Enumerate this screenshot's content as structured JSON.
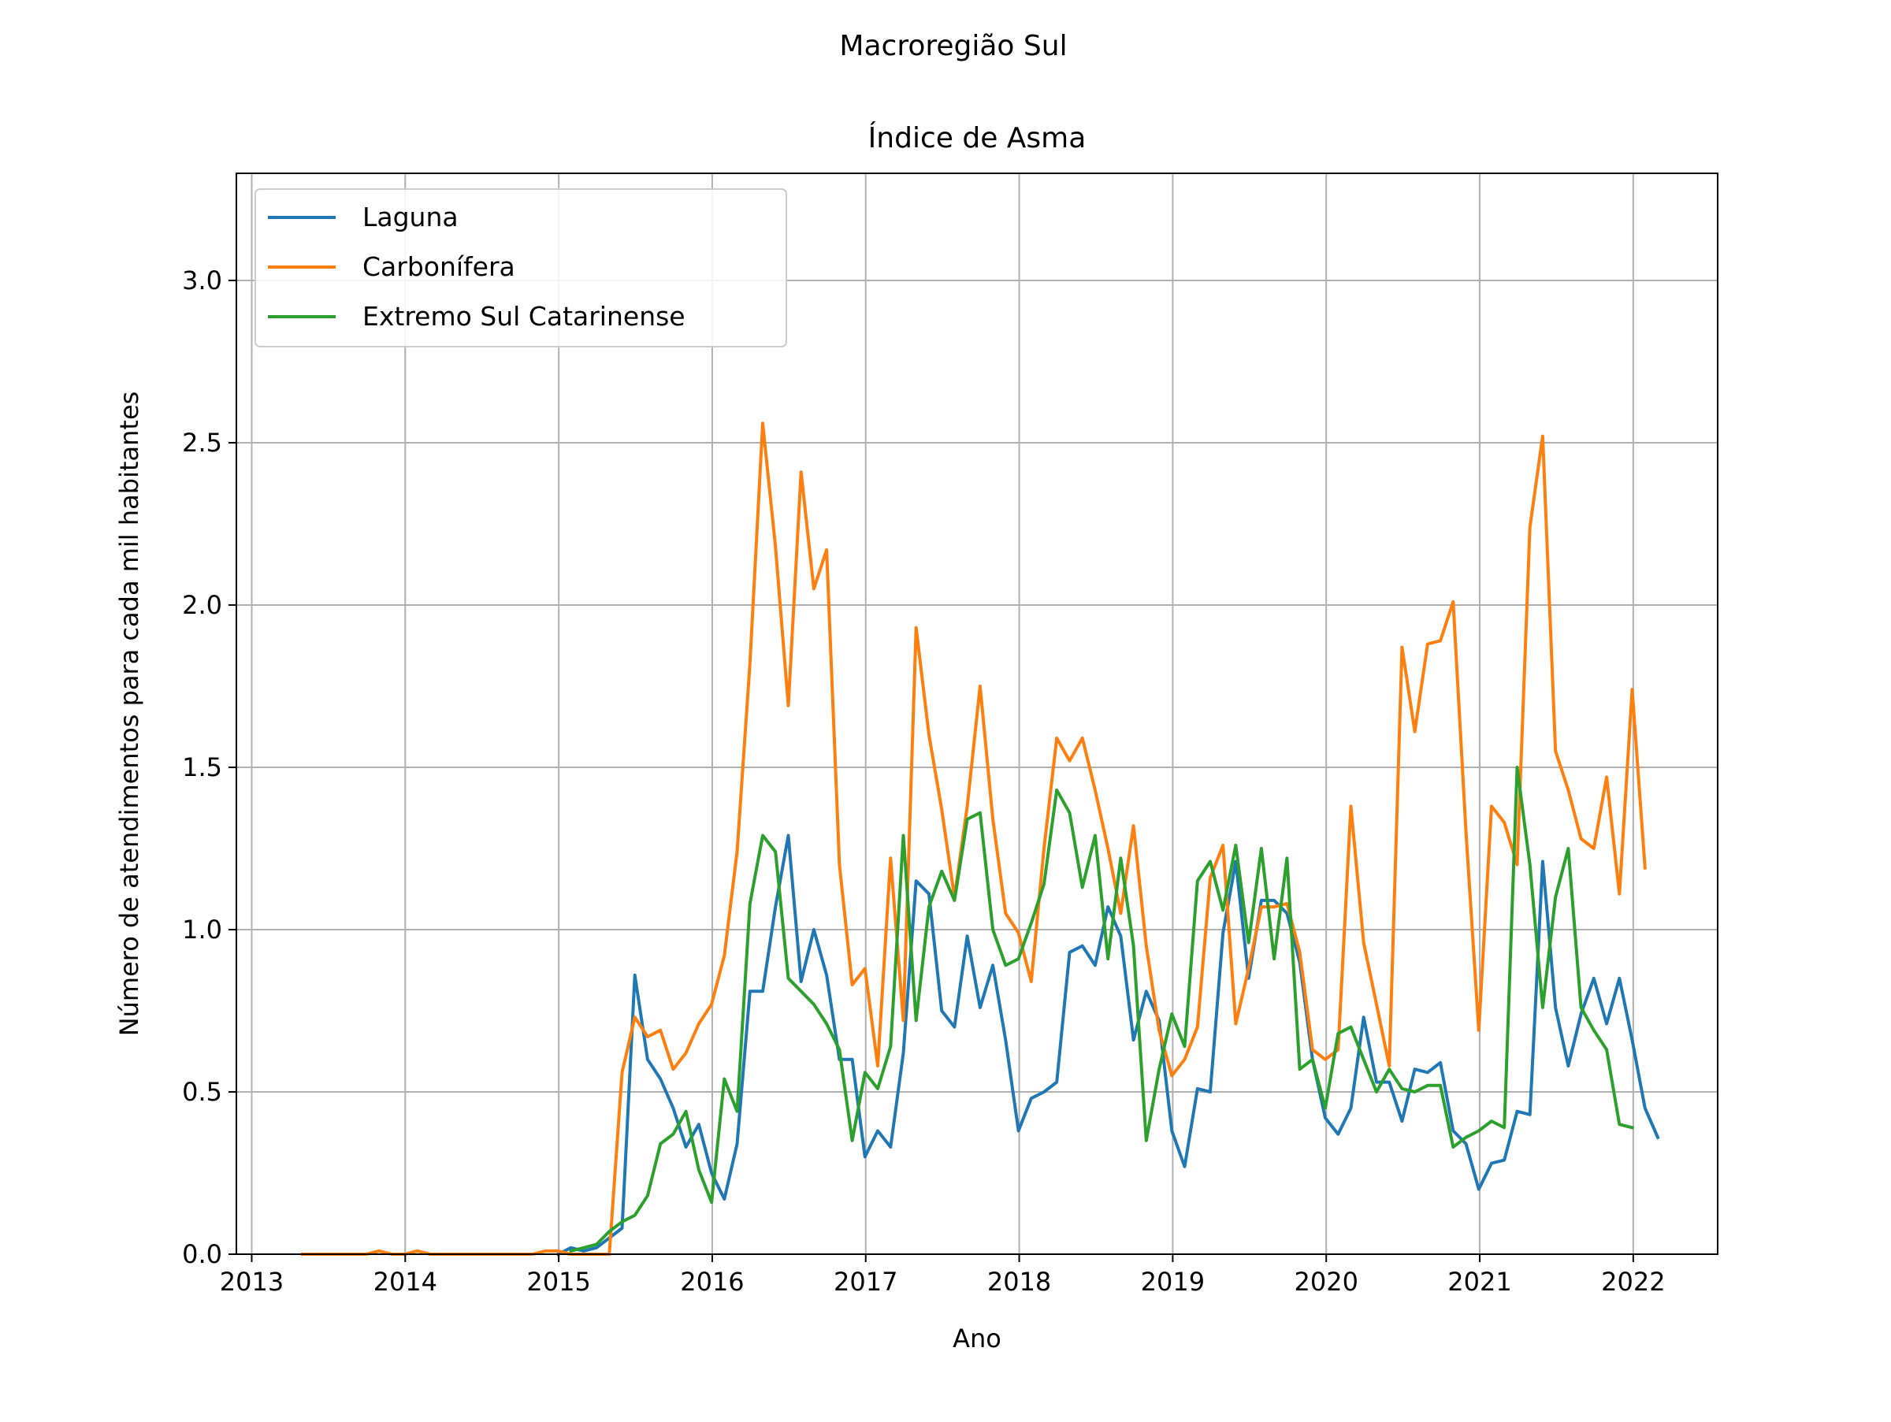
{
  "suptitle": "Macroregião Sul",
  "chart_data": {
    "type": "line",
    "title": "Índice de Asma",
    "xlabel": "Ano",
    "ylabel": "Número de atendimentos para cada mil habitantes",
    "xlim": [
      2012.9,
      2022.55
    ],
    "ylim": [
      0,
      3.33
    ],
    "grid": true,
    "legend_position": "top-left",
    "xticks": [
      2013,
      2014,
      2015,
      2016,
      2017,
      2018,
      2019,
      2020,
      2021,
      2022
    ],
    "yticks": [
      0.0,
      0.5,
      1.0,
      1.5,
      2.0,
      2.5,
      3.0
    ],
    "x_start": 2013.33,
    "x_step": 0.0833,
    "series": [
      {
        "name": "Laguna",
        "color": "#1f77b4",
        "start_index": 20,
        "values": [
          0.0,
          0.02,
          0.01,
          0.02,
          0.05,
          0.08,
          0.86,
          0.6,
          0.54,
          0.45,
          0.33,
          0.4,
          0.25,
          0.17,
          0.34,
          0.81,
          0.81,
          1.07,
          1.29,
          0.84,
          1.0,
          0.86,
          0.6,
          0.6,
          0.3,
          0.38,
          0.33,
          0.62,
          1.15,
          1.11,
          0.75,
          0.7,
          0.98,
          0.76,
          0.89,
          0.66,
          0.38,
          0.48,
          0.5,
          0.53,
          0.93,
          0.95,
          0.89,
          1.07,
          0.98,
          0.66,
          0.81,
          0.72,
          0.38,
          0.27,
          0.51,
          0.5,
          0.99,
          1.21,
          0.85,
          1.09,
          1.09,
          1.05,
          0.9,
          0.6,
          0.42,
          0.37,
          0.45,
          0.73,
          0.53,
          0.53,
          0.41,
          0.57,
          0.56,
          0.59,
          0.38,
          0.34,
          0.2,
          0.28,
          0.29,
          0.44,
          0.43,
          1.21,
          0.76,
          0.58,
          0.74,
          0.85,
          0.71,
          0.85,
          0.66,
          0.45,
          0.36
        ]
      },
      {
        "name": "Carbonífera",
        "color": "#ff7f0e",
        "start_index": 0,
        "values": [
          0.0,
          0.0,
          0.0,
          0.0,
          0.0,
          0.0,
          0.01,
          0.0,
          0.0,
          0.01,
          0.0,
          0.0,
          0.0,
          0.0,
          0.0,
          0.0,
          0.0,
          0.0,
          0.0,
          0.01,
          0.01,
          0.0,
          0.0,
          0.0,
          0.0,
          0.56,
          0.73,
          0.67,
          0.69,
          0.57,
          0.62,
          0.71,
          0.77,
          0.92,
          1.24,
          1.82,
          2.56,
          2.18,
          1.69,
          2.41,
          2.05,
          2.17,
          1.2,
          0.83,
          0.88,
          0.58,
          1.22,
          0.72,
          1.93,
          1.6,
          1.37,
          1.1,
          1.38,
          1.75,
          1.34,
          1.05,
          0.99,
          0.84,
          1.25,
          1.59,
          1.52,
          1.59,
          1.43,
          1.25,
          1.05,
          1.32,
          0.95,
          0.69,
          0.55,
          0.6,
          0.7,
          1.16,
          1.26,
          0.71,
          0.88,
          1.07,
          1.07,
          1.08,
          0.93,
          0.63,
          0.6,
          0.63,
          1.38,
          0.96,
          0.77,
          0.58,
          1.87,
          1.61,
          1.88,
          1.89,
          2.01,
          1.3,
          0.69,
          1.38,
          1.33,
          1.2,
          2.24,
          2.52,
          1.55,
          1.43,
          1.28,
          1.25,
          1.47,
          1.11,
          1.74,
          1.19
        ]
      },
      {
        "name": "Extremo Sul Catarinense",
        "color": "#2ca02c",
        "start_index": 21,
        "values": [
          0.01,
          0.02,
          0.03,
          0.07,
          0.1,
          0.12,
          0.18,
          0.34,
          0.37,
          0.44,
          0.26,
          0.16,
          0.54,
          0.44,
          1.08,
          1.29,
          1.24,
          0.85,
          0.81,
          0.77,
          0.71,
          0.63,
          0.35,
          0.56,
          0.51,
          0.64,
          1.29,
          0.72,
          1.07,
          1.18,
          1.09,
          1.34,
          1.36,
          1.0,
          0.89,
          0.91,
          1.02,
          1.14,
          1.43,
          1.36,
          1.13,
          1.29,
          0.91,
          1.22,
          0.95,
          0.35,
          0.57,
          0.74,
          0.64,
          1.15,
          1.21,
          1.06,
          1.26,
          0.96,
          1.25,
          0.91,
          1.22,
          0.57,
          0.6,
          0.45,
          0.68,
          0.7,
          0.6,
          0.5,
          0.57,
          0.51,
          0.5,
          0.52,
          0.52,
          0.33,
          0.36,
          0.38,
          0.41,
          0.39,
          1.5,
          1.2,
          0.76,
          1.1,
          1.25,
          0.76,
          0.69,
          0.63,
          0.4,
          0.39
        ]
      }
    ]
  }
}
